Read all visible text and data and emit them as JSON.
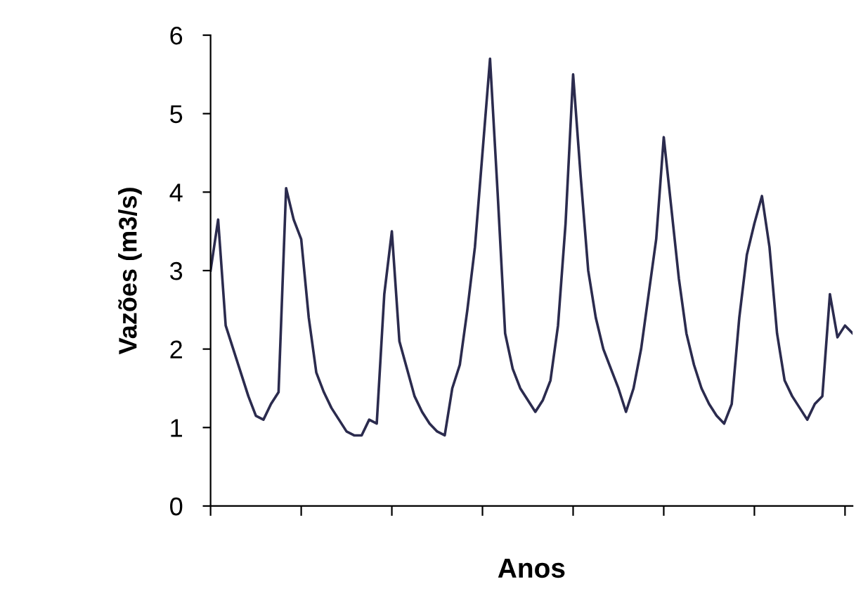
{
  "chart_data": {
    "type": "line",
    "xlabel": "Anos",
    "ylabel": "Vazões (m3/s)",
    "categories": [
      null,
      null,
      null,
      null,
      null,
      null,
      null,
      null,
      null,
      null,
      null,
      null,
      null,
      null,
      null,
      null,
      null,
      null,
      null,
      null,
      null,
      null,
      null,
      null,
      null,
      null,
      null,
      null,
      null,
      null,
      null,
      null,
      null,
      null,
      null,
      null,
      null,
      null,
      null,
      null,
      null,
      null,
      null,
      null,
      null,
      null,
      null,
      null,
      null,
      null,
      null,
      null,
      null,
      null,
      null,
      null,
      null,
      null,
      null,
      null,
      null,
      null,
      null,
      null,
      null,
      null,
      null,
      null,
      null,
      null,
      null,
      null,
      null,
      null,
      null,
      null,
      null,
      null,
      null,
      null,
      null,
      null,
      null,
      null,
      null,
      null
    ],
    "series": [
      {
        "color": "#2b2b4e",
        "values": [
          3.0,
          3.65,
          2.3,
          2.0,
          1.7,
          1.4,
          1.15,
          1.1,
          1.3,
          1.45,
          4.05,
          3.65,
          3.4,
          2.4,
          1.7,
          1.45,
          1.25,
          1.1,
          0.95,
          0.9,
          0.9,
          1.1,
          1.05,
          2.7,
          3.5,
          2.1,
          1.75,
          1.4,
          1.2,
          1.05,
          0.95,
          0.9,
          1.5,
          1.8,
          2.5,
          3.3,
          4.5,
          5.7,
          4.0,
          2.2,
          1.75,
          1.5,
          1.35,
          1.2,
          1.35,
          1.6,
          2.3,
          3.6,
          5.5,
          4.2,
          3.0,
          2.4,
          2.0,
          1.75,
          1.5,
          1.2,
          1.5,
          2.0,
          2.7,
          3.4,
          4.7,
          3.8,
          2.9,
          2.2,
          1.8,
          1.5,
          1.3,
          1.15,
          1.05,
          1.3,
          2.4,
          3.2,
          3.6,
          3.95,
          3.3,
          2.2,
          1.6,
          1.4,
          1.25,
          1.1,
          1.3,
          1.4,
          2.7,
          2.15,
          2.3,
          2.2
        ]
      }
    ],
    "ylim": [
      0,
      6
    ],
    "yticks": [
      0,
      1,
      2,
      3,
      4,
      5,
      6
    ],
    "grid": false,
    "legend": false,
    "marker": "none",
    "line_style": "solid"
  }
}
